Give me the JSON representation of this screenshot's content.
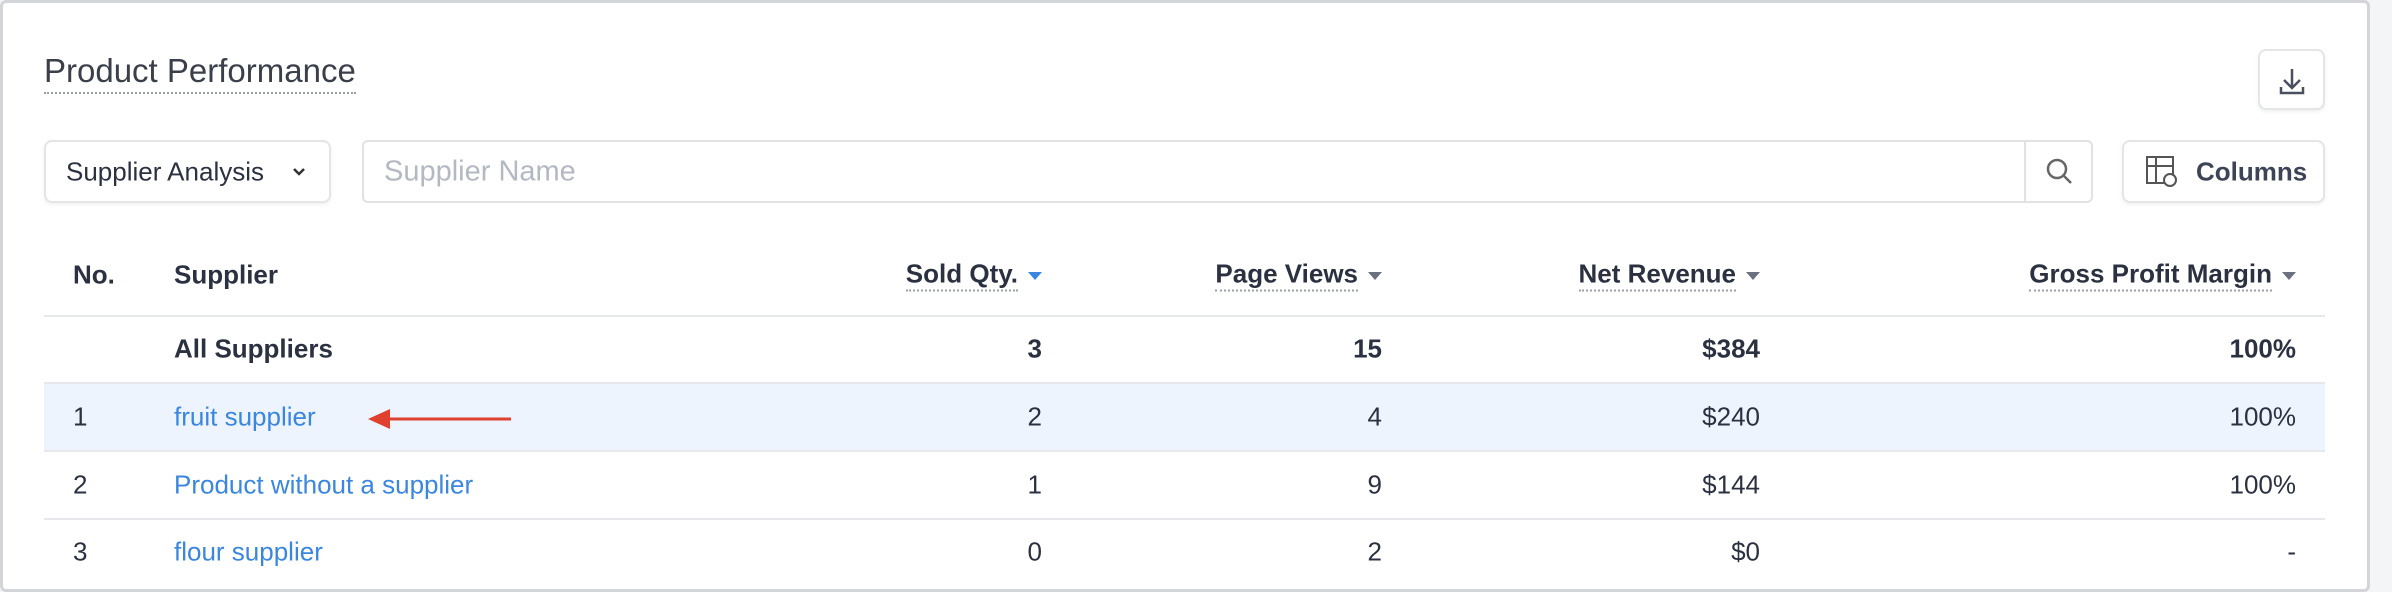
{
  "header": {
    "title": "Product Performance"
  },
  "controls": {
    "view_select": "Supplier Analysis",
    "search_placeholder": "Supplier Name",
    "columns_button": "Columns"
  },
  "table": {
    "columns": [
      "No.",
      "Supplier",
      "Sold Qty.",
      "Page Views",
      "Net Revenue",
      "Gross Profit Margin"
    ],
    "total_row": {
      "label": "All Suppliers",
      "values": [
        3,
        15,
        "$384",
        "100%"
      ]
    },
    "rows": [
      [
        1,
        "fruit supplier",
        2,
        4,
        "$240",
        "100%"
      ],
      [
        2,
        "Product without a supplier",
        1,
        9,
        "$144",
        "100%"
      ],
      [
        3,
        "flour supplier",
        0,
        2,
        "$0",
        "-"
      ]
    ]
  }
}
